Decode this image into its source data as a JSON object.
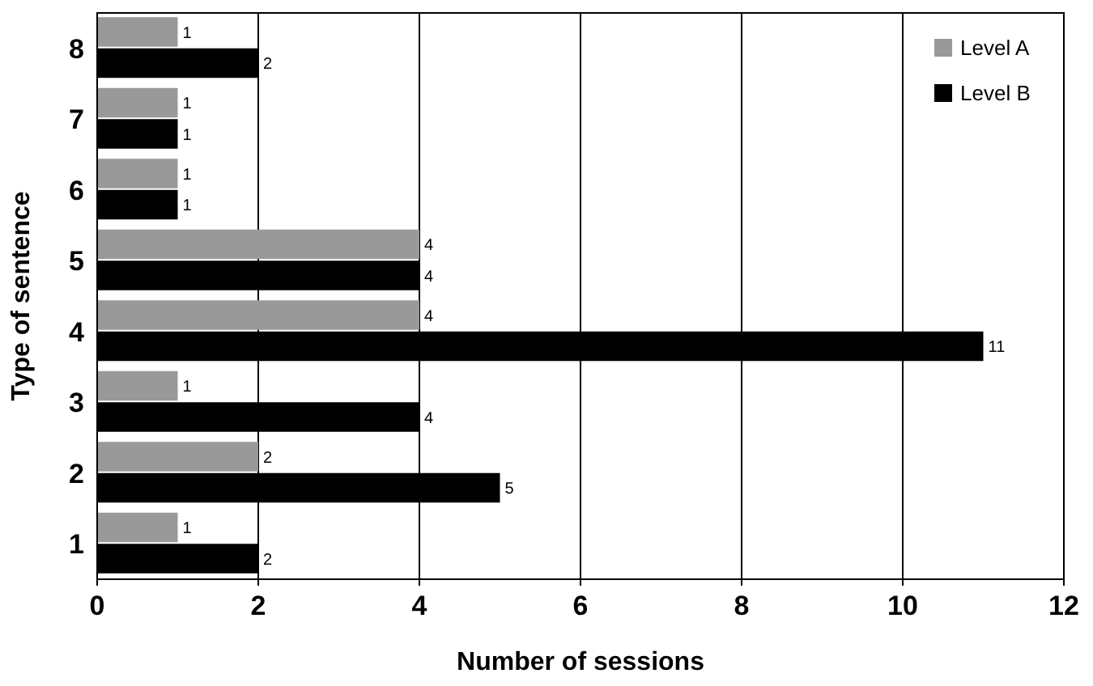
{
  "chart_data": {
    "type": "bar",
    "orientation": "horizontal",
    "xlabel": "Number of sessions",
    "ylabel": "Type of sentence",
    "categories": [
      "8",
      "7",
      "6",
      "5",
      "4",
      "3",
      "2",
      "1"
    ],
    "series": [
      {
        "name": "Level A",
        "color": "#999999",
        "values": [
          1,
          1,
          1,
          4,
          4,
          1,
          2,
          1
        ]
      },
      {
        "name": "Level B",
        "color": "#000000",
        "values": [
          2,
          1,
          1,
          4,
          11,
          4,
          5,
          2
        ]
      }
    ],
    "xlim": [
      0,
      12
    ],
    "xticks": [
      0,
      2,
      4,
      6,
      8,
      10,
      12
    ],
    "grid": "x",
    "legend": "top right",
    "data_labels": true
  }
}
